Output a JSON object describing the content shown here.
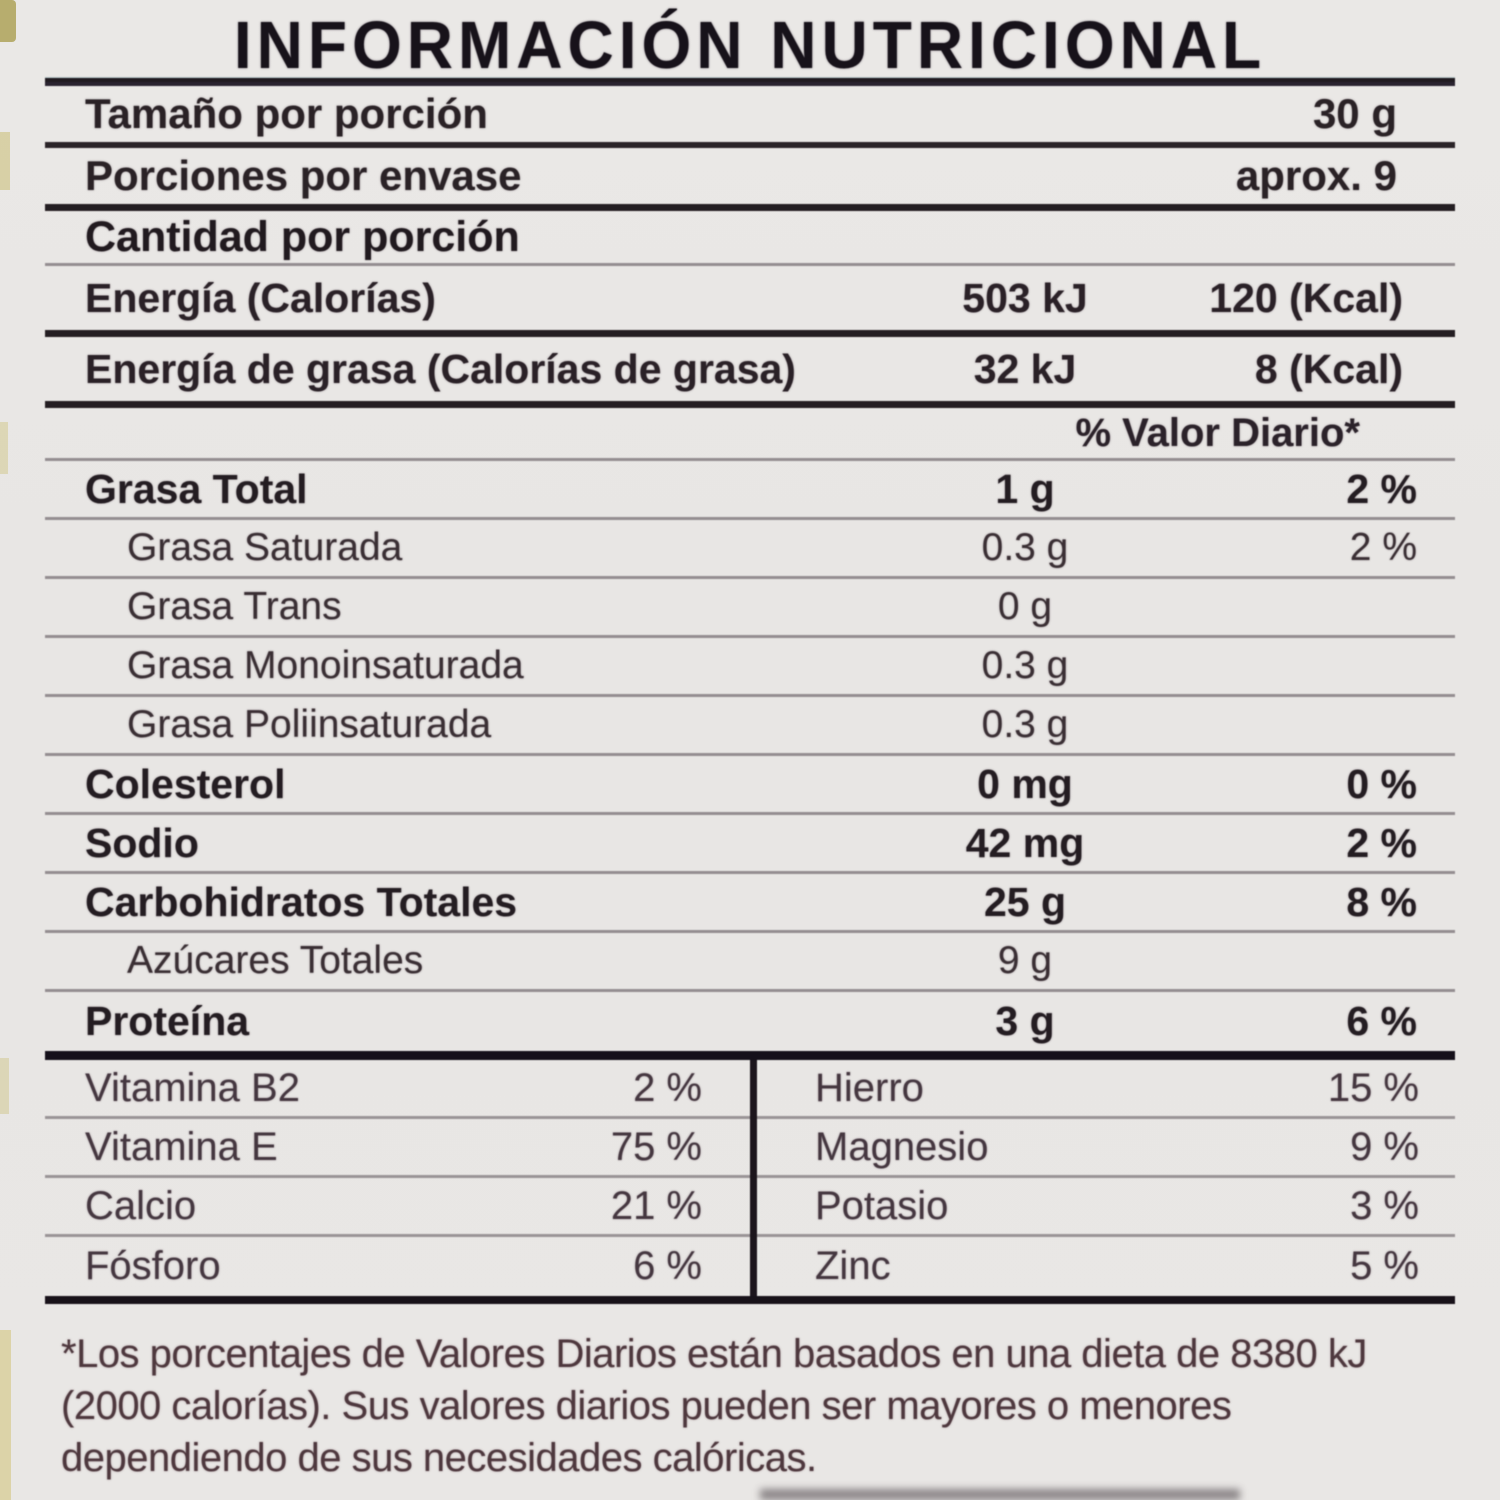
{
  "label": {
    "title": "INFORMACIÓN NUTRICIONAL",
    "serving_rows": [
      {
        "name": "Tamaño por porción",
        "value": "30 g"
      },
      {
        "name": "Porciones por envase",
        "value": "aprox. 9"
      }
    ],
    "amount_header": "Cantidad por porción",
    "energy_rows": [
      {
        "name": "Energía (Calorías)",
        "kj": "503 kJ",
        "kcal": "120 (Kcal)"
      },
      {
        "name": "Energía de grasa (Calorías de grasa)",
        "kj": "32 kJ",
        "kcal": "8 (Kcal)"
      }
    ],
    "dv_header": "% Valor Diario*",
    "nutrient_rows": [
      {
        "name": "Grasa Total",
        "amount": "1 g",
        "dv": "2 %"
      },
      {
        "name": "Grasa Saturada",
        "amount": "0.3 g",
        "dv": "2 %"
      },
      {
        "name": "Grasa Trans",
        "amount": "0 g",
        "dv": ""
      },
      {
        "name": "Grasa Monoinsaturada",
        "amount": "0.3 g",
        "dv": ""
      },
      {
        "name": "Grasa Poliinsaturada",
        "amount": "0.3 g",
        "dv": ""
      },
      {
        "name": "Colesterol",
        "amount": "0 mg",
        "dv": "0 %"
      },
      {
        "name": "Sodio",
        "amount": "42 mg",
        "dv": "2 %"
      },
      {
        "name": "Carbohidratos Totales",
        "amount": "25 g",
        "dv": "8 %"
      },
      {
        "name": "Azúcares Totales",
        "amount": "9 g",
        "dv": ""
      },
      {
        "name": "Proteína",
        "amount": "3 g",
        "dv": "6 %"
      }
    ],
    "micros_left": [
      {
        "name": "Vitamina B2",
        "dv": "2 %"
      },
      {
        "name": "Vitamina E",
        "dv": "75 %"
      },
      {
        "name": "Calcio",
        "dv": "21 %"
      },
      {
        "name": "Fósforo",
        "dv": "6 %"
      }
    ],
    "micros_right": [
      {
        "name": "Hierro",
        "dv": "15 %"
      },
      {
        "name": "Magnesio",
        "dv": "9 %"
      },
      {
        "name": "Potasio",
        "dv": "3 %"
      },
      {
        "name": "Zinc",
        "dv": "5 %"
      }
    ],
    "footnote": "*Los porcentajes de Valores Diarios están basados en una dieta de 8380 kJ (2000 calorías). Sus valores diarios pueden ser mayores o menores dependiendo de sus necesidades calóricas.",
    "colors": {
      "background": "#e8e6e4",
      "text": "#241d22",
      "rule_dark": "#241e22",
      "rule_thin": "#948e91",
      "footnote_text": "#4e383e"
    }
  }
}
